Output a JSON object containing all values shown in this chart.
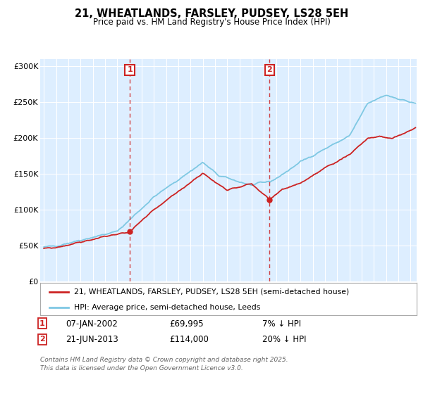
{
  "title": "21, WHEATLANDS, FARSLEY, PUDSEY, LS28 5EH",
  "subtitle": "Price paid vs. HM Land Registry's House Price Index (HPI)",
  "legend_line1": "21, WHEATLANDS, FARSLEY, PUDSEY, LS28 5EH (semi-detached house)",
  "legend_line2": "HPI: Average price, semi-detached house, Leeds",
  "footnote": "Contains HM Land Registry data © Crown copyright and database right 2025.\nThis data is licensed under the Open Government Licence v3.0.",
  "marker1_date": "07-JAN-2002",
  "marker1_price": "£69,995",
  "marker1_hpi": "7% ↓ HPI",
  "marker2_date": "21-JUN-2013",
  "marker2_price": "£114,000",
  "marker2_hpi": "20% ↓ HPI",
  "hpi_color": "#7ec8e3",
  "price_color": "#cc2222",
  "marker_color": "#cc2222",
  "bg_color": "#ddeeff",
  "ylim": [
    0,
    310000
  ],
  "yticks": [
    0,
    50000,
    100000,
    150000,
    200000,
    250000,
    300000
  ],
  "marker1_x_year": 2002.03,
  "marker1_y": 69995,
  "marker2_x_year": 2013.47,
  "marker2_y": 114000,
  "xlim_left": 1994.7,
  "xlim_right": 2025.5
}
